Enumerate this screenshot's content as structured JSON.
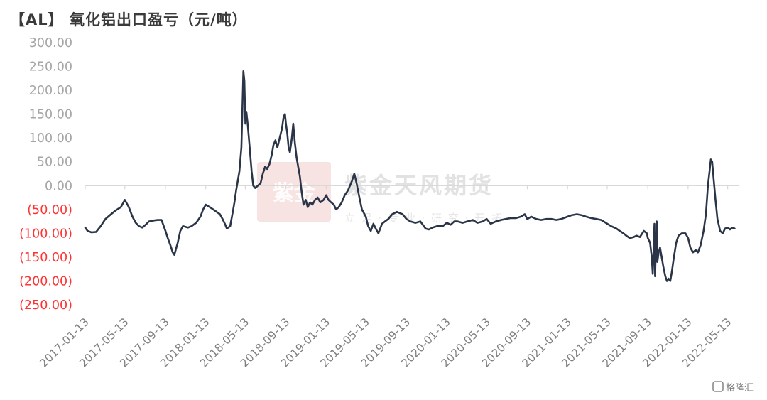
{
  "chart_data": {
    "type": "line",
    "title": "【AL】 氧化铝出口盈亏（元/吨）",
    "xlabel": "",
    "ylabel": "",
    "ylim": [
      -250,
      300
    ],
    "y_ticks": [
      {
        "value": 300,
        "label": "300.00"
      },
      {
        "value": 250,
        "label": "250.00"
      },
      {
        "value": 200,
        "label": "200.00"
      },
      {
        "value": 150,
        "label": "150.00"
      },
      {
        "value": 100,
        "label": "100.00"
      },
      {
        "value": 50,
        "label": "50.00"
      },
      {
        "value": 0,
        "label": "0.00"
      },
      {
        "value": -50,
        "label": "(50.00)"
      },
      {
        "value": -100,
        "label": "(100.00)"
      },
      {
        "value": -150,
        "label": "(150.00)"
      },
      {
        "value": -200,
        "label": "(200.00)"
      },
      {
        "value": -250,
        "label": "(250.00)"
      }
    ],
    "x_ticks": [
      "2017-01-13",
      "2017-05-13",
      "2017-09-13",
      "2018-01-13",
      "2018-05-13",
      "2018-09-13",
      "2019-01-13",
      "2019-05-13",
      "2019-09-13",
      "2020-01-13",
      "2020-05-13",
      "2020-09-13",
      "2021-01-13",
      "2021-05-13",
      "2021-09-13",
      "2022-01-13",
      "2022-05-13"
    ],
    "xlim": [
      "2017-01-13",
      "2022-06-15"
    ],
    "grid": false,
    "colors": {
      "line": "#2b3548",
      "positive_tick": "#a6a6a6",
      "negative_tick": "#ff3333",
      "axis": "#d9d9d9"
    },
    "series": [
      {
        "points": [
          [
            "2017-01-13",
            -88
          ],
          [
            "2017-01-20",
            -95
          ],
          [
            "2017-02-01",
            -98
          ],
          [
            "2017-02-15",
            -97
          ],
          [
            "2017-03-01",
            -85
          ],
          [
            "2017-03-15",
            -70
          ],
          [
            "2017-04-01",
            -60
          ],
          [
            "2017-04-15",
            -52
          ],
          [
            "2017-05-01",
            -45
          ],
          [
            "2017-05-13",
            -30
          ],
          [
            "2017-05-25",
            -45
          ],
          [
            "2017-06-05",
            -65
          ],
          [
            "2017-06-15",
            -78
          ],
          [
            "2017-06-25",
            -85
          ],
          [
            "2017-07-05",
            -88
          ],
          [
            "2017-07-15",
            -82
          ],
          [
            "2017-07-25",
            -75
          ],
          [
            "2017-08-10",
            -73
          ],
          [
            "2017-08-20",
            -72
          ],
          [
            "2017-09-01",
            -72
          ],
          [
            "2017-09-13",
            -95
          ],
          [
            "2017-09-20",
            -110
          ],
          [
            "2017-09-28",
            -125
          ],
          [
            "2017-10-05",
            -140
          ],
          [
            "2017-10-10",
            -145
          ],
          [
            "2017-10-20",
            -120
          ],
          [
            "2017-10-28",
            -95
          ],
          [
            "2017-11-05",
            -85
          ],
          [
            "2017-11-20",
            -88
          ],
          [
            "2017-12-01",
            -85
          ],
          [
            "2017-12-15",
            -78
          ],
          [
            "2017-12-28",
            -65
          ],
          [
            "2018-01-05",
            -50
          ],
          [
            "2018-01-13",
            -40
          ],
          [
            "2018-01-25",
            -45
          ],
          [
            "2018-02-05",
            -50
          ],
          [
            "2018-02-15",
            -55
          ],
          [
            "2018-02-25",
            -60
          ],
          [
            "2018-03-05",
            -70
          ],
          [
            "2018-03-12",
            -80
          ],
          [
            "2018-03-18",
            -90
          ],
          [
            "2018-03-28",
            -85
          ],
          [
            "2018-04-05",
            -55
          ],
          [
            "2018-04-10",
            -35
          ],
          [
            "2018-04-15",
            -10
          ],
          [
            "2018-04-20",
            10
          ],
          [
            "2018-04-25",
            30
          ],
          [
            "2018-05-01",
            80
          ],
          [
            "2018-05-04",
            160
          ],
          [
            "2018-05-07",
            240
          ],
          [
            "2018-05-10",
            220
          ],
          [
            "2018-05-13",
            130
          ],
          [
            "2018-05-16",
            155
          ],
          [
            "2018-05-20",
            130
          ],
          [
            "2018-05-25",
            90
          ],
          [
            "2018-06-01",
            30
          ],
          [
            "2018-06-06",
            0
          ],
          [
            "2018-06-12",
            -5
          ],
          [
            "2018-06-20",
            0
          ],
          [
            "2018-06-28",
            5
          ],
          [
            "2018-07-05",
            25
          ],
          [
            "2018-07-12",
            40
          ],
          [
            "2018-07-18",
            35
          ],
          [
            "2018-07-25",
            45
          ],
          [
            "2018-08-01",
            65
          ],
          [
            "2018-08-06",
            85
          ],
          [
            "2018-08-12",
            95
          ],
          [
            "2018-08-18",
            80
          ],
          [
            "2018-08-25",
            100
          ],
          [
            "2018-09-01",
            120
          ],
          [
            "2018-09-06",
            145
          ],
          [
            "2018-09-10",
            150
          ],
          [
            "2018-09-13",
            130
          ],
          [
            "2018-09-17",
            110
          ],
          [
            "2018-09-21",
            80
          ],
          [
            "2018-09-25",
            70
          ],
          [
            "2018-10-01",
            100
          ],
          [
            "2018-10-05",
            130
          ],
          [
            "2018-10-10",
            90
          ],
          [
            "2018-10-15",
            60
          ],
          [
            "2018-10-20",
            40
          ],
          [
            "2018-10-25",
            20
          ],
          [
            "2018-10-30",
            -10
          ],
          [
            "2018-11-05",
            -40
          ],
          [
            "2018-11-12",
            -30
          ],
          [
            "2018-11-18",
            -45
          ],
          [
            "2018-11-25",
            -35
          ],
          [
            "2018-12-02",
            -40
          ],
          [
            "2018-12-10",
            -30
          ],
          [
            "2018-12-18",
            -25
          ],
          [
            "2018-12-26",
            -35
          ],
          [
            "2019-01-05",
            -30
          ],
          [
            "2019-01-13",
            -20
          ],
          [
            "2019-01-20",
            -30
          ],
          [
            "2019-01-28",
            -35
          ],
          [
            "2019-02-05",
            -40
          ],
          [
            "2019-02-12",
            -50
          ],
          [
            "2019-02-20",
            -45
          ],
          [
            "2019-03-01",
            -35
          ],
          [
            "2019-03-10",
            -20
          ],
          [
            "2019-03-20",
            -10
          ],
          [
            "2019-04-01",
            10
          ],
          [
            "2019-04-08",
            25
          ],
          [
            "2019-04-15",
            5
          ],
          [
            "2019-04-22",
            -20
          ],
          [
            "2019-05-01",
            -50
          ],
          [
            "2019-05-13",
            -65
          ],
          [
            "2019-05-20",
            -85
          ],
          [
            "2019-05-28",
            -95
          ],
          [
            "2019-06-05",
            -80
          ],
          [
            "2019-06-12",
            -90
          ],
          [
            "2019-06-20",
            -100
          ],
          [
            "2019-07-01",
            -80
          ],
          [
            "2019-07-10",
            -75
          ],
          [
            "2019-07-20",
            -70
          ],
          [
            "2019-08-01",
            -60
          ],
          [
            "2019-08-15",
            -55
          ],
          [
            "2019-09-01",
            -60
          ],
          [
            "2019-09-13",
            -70
          ],
          [
            "2019-09-25",
            -75
          ],
          [
            "2019-10-10",
            -78
          ],
          [
            "2019-10-25",
            -75
          ],
          [
            "2019-11-10",
            -90
          ],
          [
            "2019-11-20",
            -92
          ],
          [
            "2019-12-01",
            -88
          ],
          [
            "2019-12-15",
            -85
          ],
          [
            "2020-01-01",
            -85
          ],
          [
            "2020-01-13",
            -78
          ],
          [
            "2020-01-25",
            -82
          ],
          [
            "2020-02-05",
            -75
          ],
          [
            "2020-02-15",
            -75
          ],
          [
            "2020-03-01",
            -78
          ],
          [
            "2020-03-15",
            -75
          ],
          [
            "2020-04-01",
            -72
          ],
          [
            "2020-04-15",
            -78
          ],
          [
            "2020-05-01",
            -75
          ],
          [
            "2020-05-13",
            -70
          ],
          [
            "2020-05-25",
            -80
          ],
          [
            "2020-06-10",
            -75
          ],
          [
            "2020-06-25",
            -72
          ],
          [
            "2020-07-10",
            -70
          ],
          [
            "2020-07-25",
            -68
          ],
          [
            "2020-08-10",
            -68
          ],
          [
            "2020-08-25",
            -65
          ],
          [
            "2020-09-05",
            -60
          ],
          [
            "2020-09-13",
            -70
          ],
          [
            "2020-09-25",
            -65
          ],
          [
            "2020-10-10",
            -70
          ],
          [
            "2020-10-25",
            -72
          ],
          [
            "2020-11-10",
            -70
          ],
          [
            "2020-11-25",
            -70
          ],
          [
            "2020-12-10",
            -72
          ],
          [
            "2020-12-25",
            -70
          ],
          [
            "2021-01-13",
            -65
          ],
          [
            "2021-01-25",
            -62
          ],
          [
            "2021-02-10",
            -60
          ],
          [
            "2021-02-25",
            -62
          ],
          [
            "2021-03-10",
            -65
          ],
          [
            "2021-03-25",
            -68
          ],
          [
            "2021-04-10",
            -70
          ],
          [
            "2021-04-25",
            -72
          ],
          [
            "2021-05-13",
            -80
          ],
          [
            "2021-05-25",
            -85
          ],
          [
            "2021-06-10",
            -90
          ],
          [
            "2021-06-20",
            -95
          ],
          [
            "2021-07-01",
            -100
          ],
          [
            "2021-07-10",
            -105
          ],
          [
            "2021-07-20",
            -110
          ],
          [
            "2021-08-01",
            -108
          ],
          [
            "2021-08-10",
            -105
          ],
          [
            "2021-08-20",
            -108
          ],
          [
            "2021-09-01",
            -95
          ],
          [
            "2021-09-10",
            -100
          ],
          [
            "2021-09-13",
            -110
          ],
          [
            "2021-09-20",
            -120
          ],
          [
            "2021-09-25",
            -150
          ],
          [
            "2021-09-28",
            -185
          ],
          [
            "2021-10-01",
            -130
          ],
          [
            "2021-10-03",
            -80
          ],
          [
            "2021-10-05",
            -190
          ],
          [
            "2021-10-08",
            -120
          ],
          [
            "2021-10-10",
            -75
          ],
          [
            "2021-10-12",
            -160
          ],
          [
            "2021-10-16",
            -140
          ],
          [
            "2021-10-20",
            -130
          ],
          [
            "2021-10-25",
            -150
          ],
          [
            "2021-10-30",
            -170
          ],
          [
            "2021-11-05",
            -190
          ],
          [
            "2021-11-10",
            -200
          ],
          [
            "2021-11-15",
            -195
          ],
          [
            "2021-11-20",
            -200
          ],
          [
            "2021-11-25",
            -180
          ],
          [
            "2021-12-01",
            -150
          ],
          [
            "2021-12-08",
            -120
          ],
          [
            "2021-12-15",
            -105
          ],
          [
            "2021-12-25",
            -100
          ],
          [
            "2022-01-05",
            -100
          ],
          [
            "2022-01-13",
            -110
          ],
          [
            "2022-01-20",
            -130
          ],
          [
            "2022-01-28",
            -140
          ],
          [
            "2022-02-05",
            -135
          ],
          [
            "2022-02-12",
            -140
          ],
          [
            "2022-02-20",
            -125
          ],
          [
            "2022-03-01",
            -95
          ],
          [
            "2022-03-08",
            -60
          ],
          [
            "2022-03-14",
            0
          ],
          [
            "2022-03-19",
            30
          ],
          [
            "2022-03-23",
            55
          ],
          [
            "2022-03-27",
            50
          ],
          [
            "2022-04-01",
            10
          ],
          [
            "2022-04-06",
            -30
          ],
          [
            "2022-04-12",
            -70
          ],
          [
            "2022-04-20",
            -95
          ],
          [
            "2022-04-28",
            -100
          ],
          [
            "2022-05-05",
            -90
          ],
          [
            "2022-05-13",
            -88
          ],
          [
            "2022-05-20",
            -92
          ],
          [
            "2022-05-27",
            -88
          ],
          [
            "2022-06-03",
            -90
          ]
        ]
      }
    ]
  },
  "watermark": {
    "name": "紫金天风期货",
    "slogan": "立 足 · 专 业 · 研 究 · 开 拓",
    "seal": "紫金"
  },
  "corner_logo": "格隆汇"
}
